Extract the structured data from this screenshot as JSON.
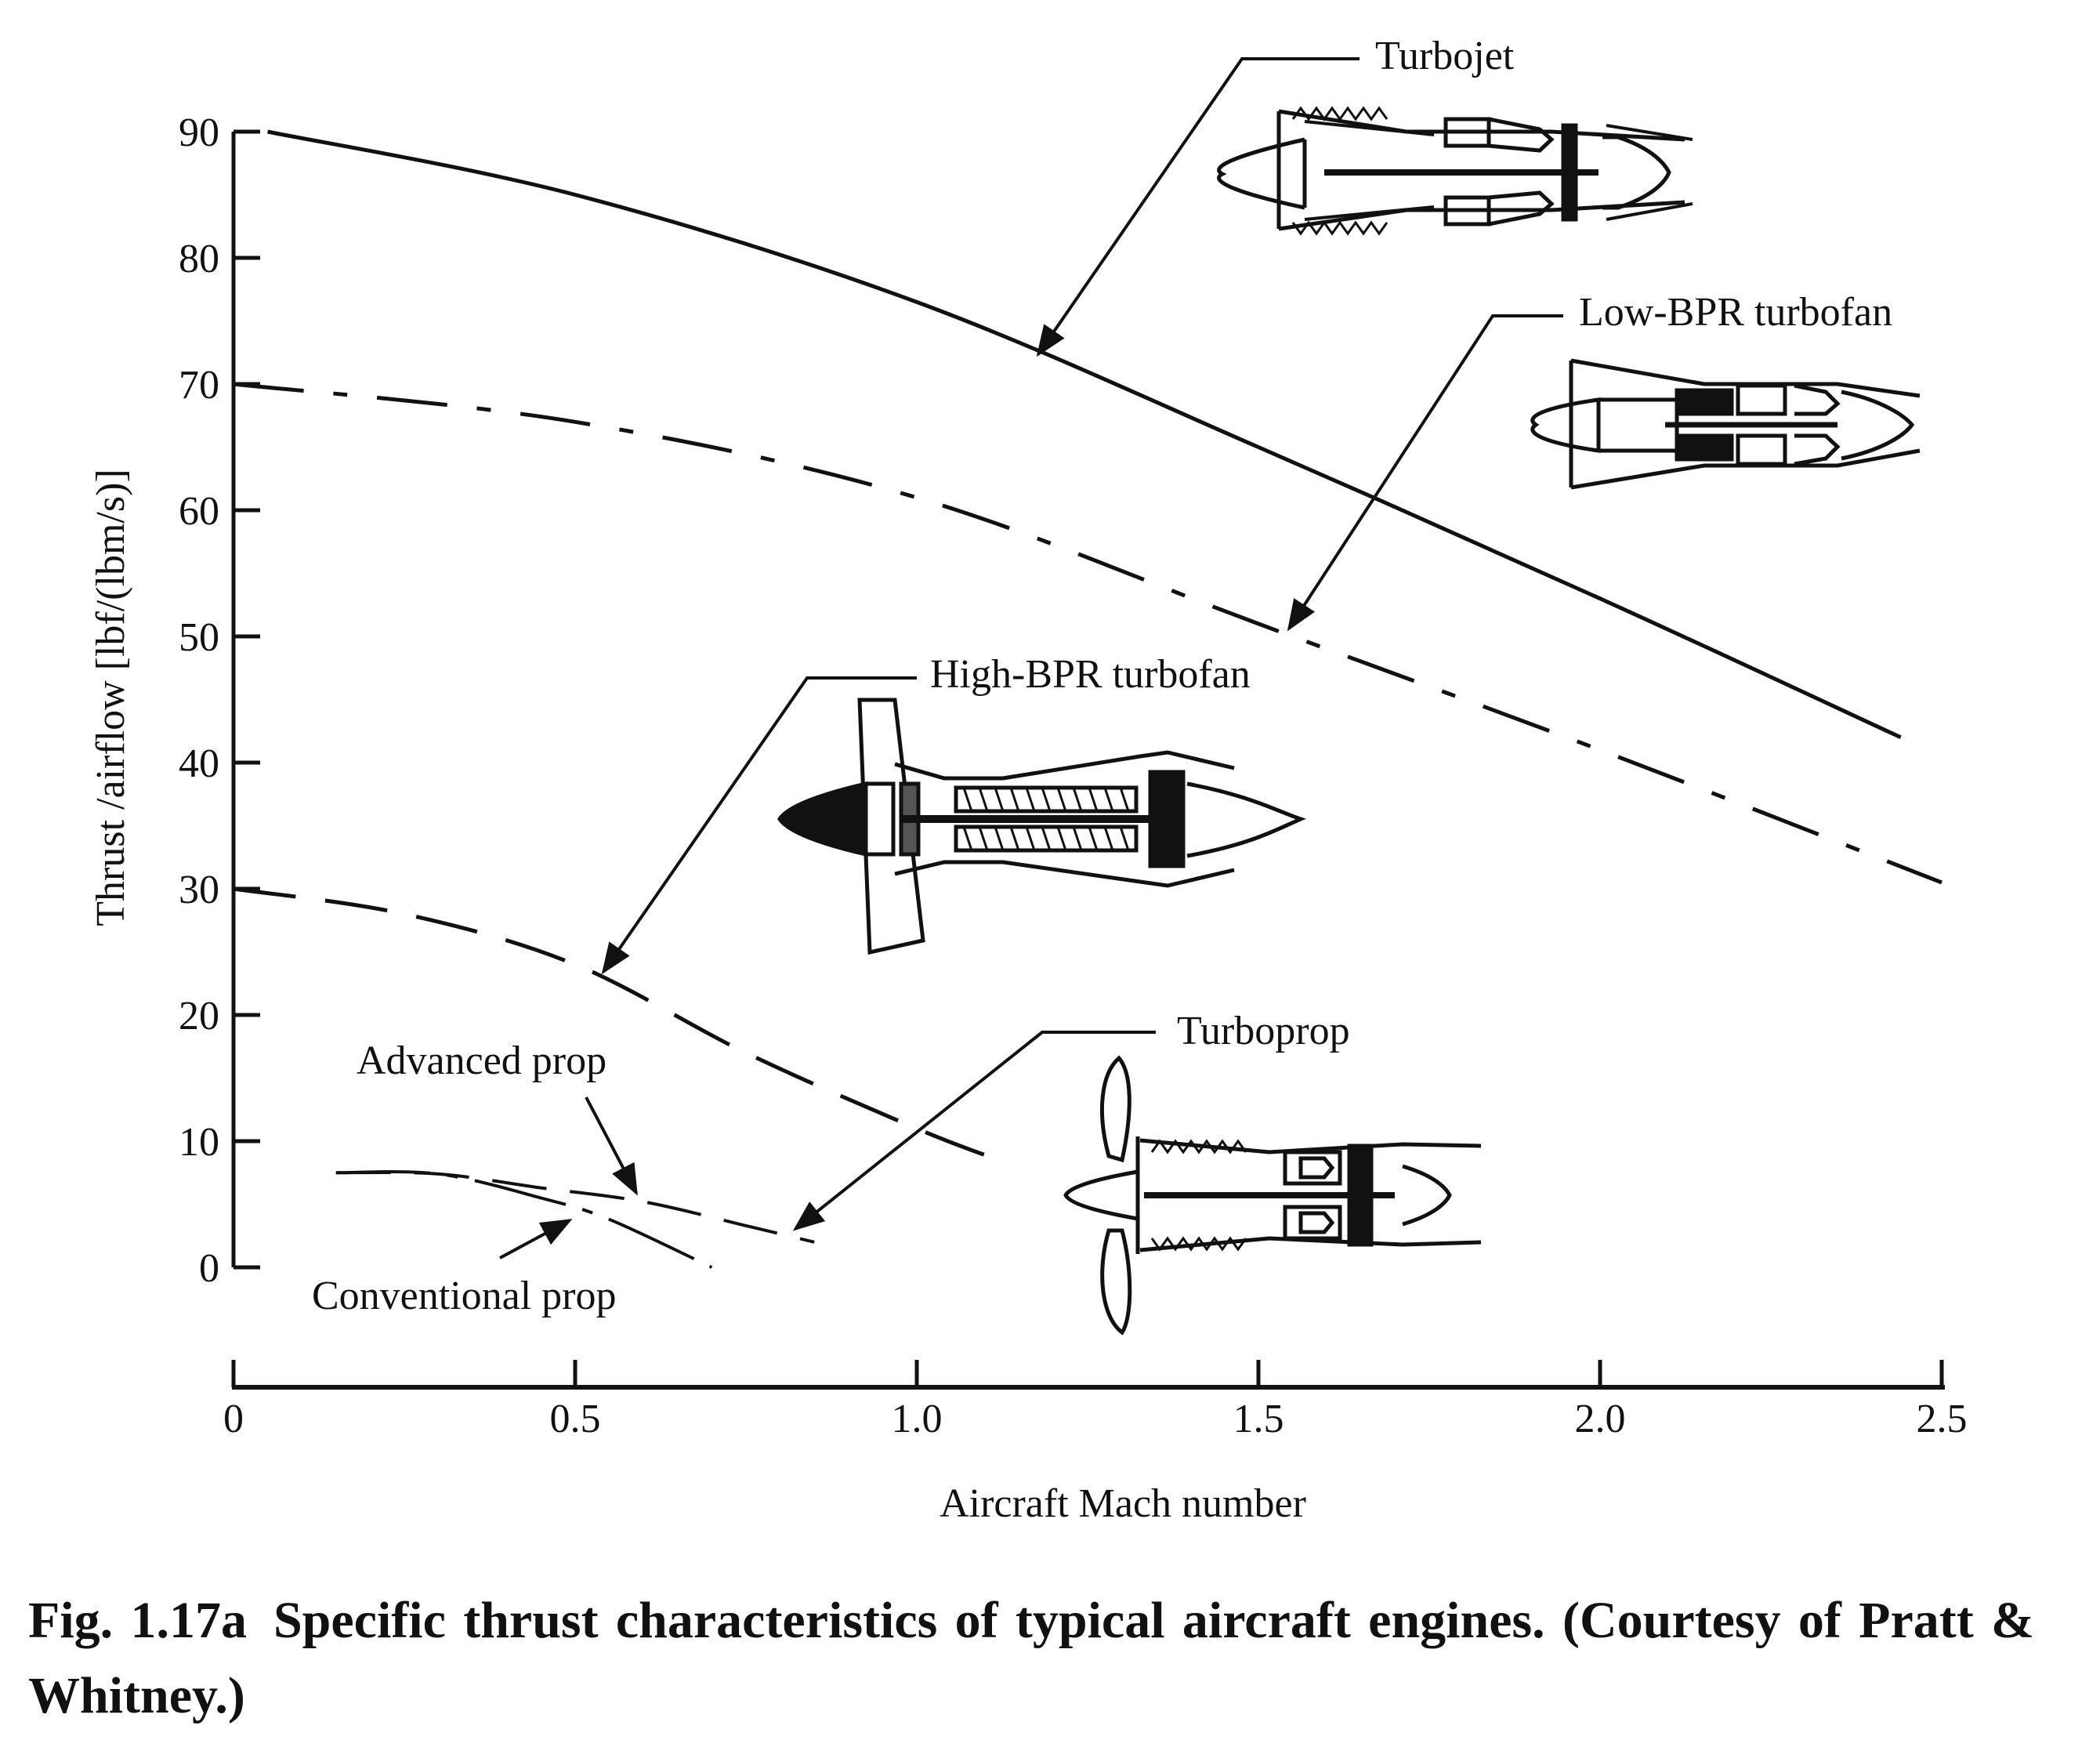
{
  "chart_data": {
    "type": "line",
    "xlabel": "Aircraft Mach number",
    "ylabel": "Thrust /airflow [lbf/(lbm/s)]",
    "xlim": [
      0,
      2.5
    ],
    "ylim": [
      0,
      90
    ],
    "x_ticks": [
      "0",
      "0.5",
      "1.0",
      "1.5",
      "2.0",
      "2.5"
    ],
    "y_ticks": [
      "0",
      "10",
      "20",
      "30",
      "40",
      "50",
      "60",
      "70",
      "80",
      "90"
    ],
    "grid": false,
    "legend": "none",
    "series": [
      {
        "name": "Turbojet",
        "x": [
          0.05,
          0.5,
          1.0,
          1.5,
          2.0,
          2.44
        ],
        "y": [
          90,
          85,
          76.5,
          65,
          53,
          42
        ]
      },
      {
        "name": "Low-BPR turbofan",
        "x": [
          0,
          0.5,
          1.0,
          1.5,
          2.0,
          2.5
        ],
        "y": [
          70,
          67,
          61,
          51,
          41,
          30.5
        ]
      },
      {
        "name": "High-BPR turbofan",
        "x": [
          0,
          0.25,
          0.5,
          0.75,
          1.0,
          1.12
        ],
        "y": [
          30,
          28,
          24,
          17,
          11,
          8.5
        ]
      },
      {
        "name": "Advanced prop",
        "x": [
          0.15,
          0.3,
          0.45,
          0.6,
          0.75,
          0.85
        ],
        "y": [
          7.5,
          7.4,
          6.3,
          5.2,
          3.3,
          2.0
        ]
      },
      {
        "name": "Conventional prop",
        "x": [
          0.15,
          0.3,
          0.45,
          0.55,
          0.7
        ],
        "y": [
          7.5,
          7.4,
          5.5,
          3.8,
          0
        ]
      }
    ],
    "annotations": [
      {
        "label": "Turbojet"
      },
      {
        "label": "Low-BPR turbofan"
      },
      {
        "label": "High-BPR turbofan"
      },
      {
        "label": "Turboprop"
      },
      {
        "label": "Advanced prop"
      },
      {
        "label": "Conventional prop"
      }
    ]
  },
  "caption": {
    "figure": "Fig. 1.17a",
    "text": "Specific thrust characteristics of typical aircraft engines. (Courtesy of Pratt & Whitney.)"
  }
}
